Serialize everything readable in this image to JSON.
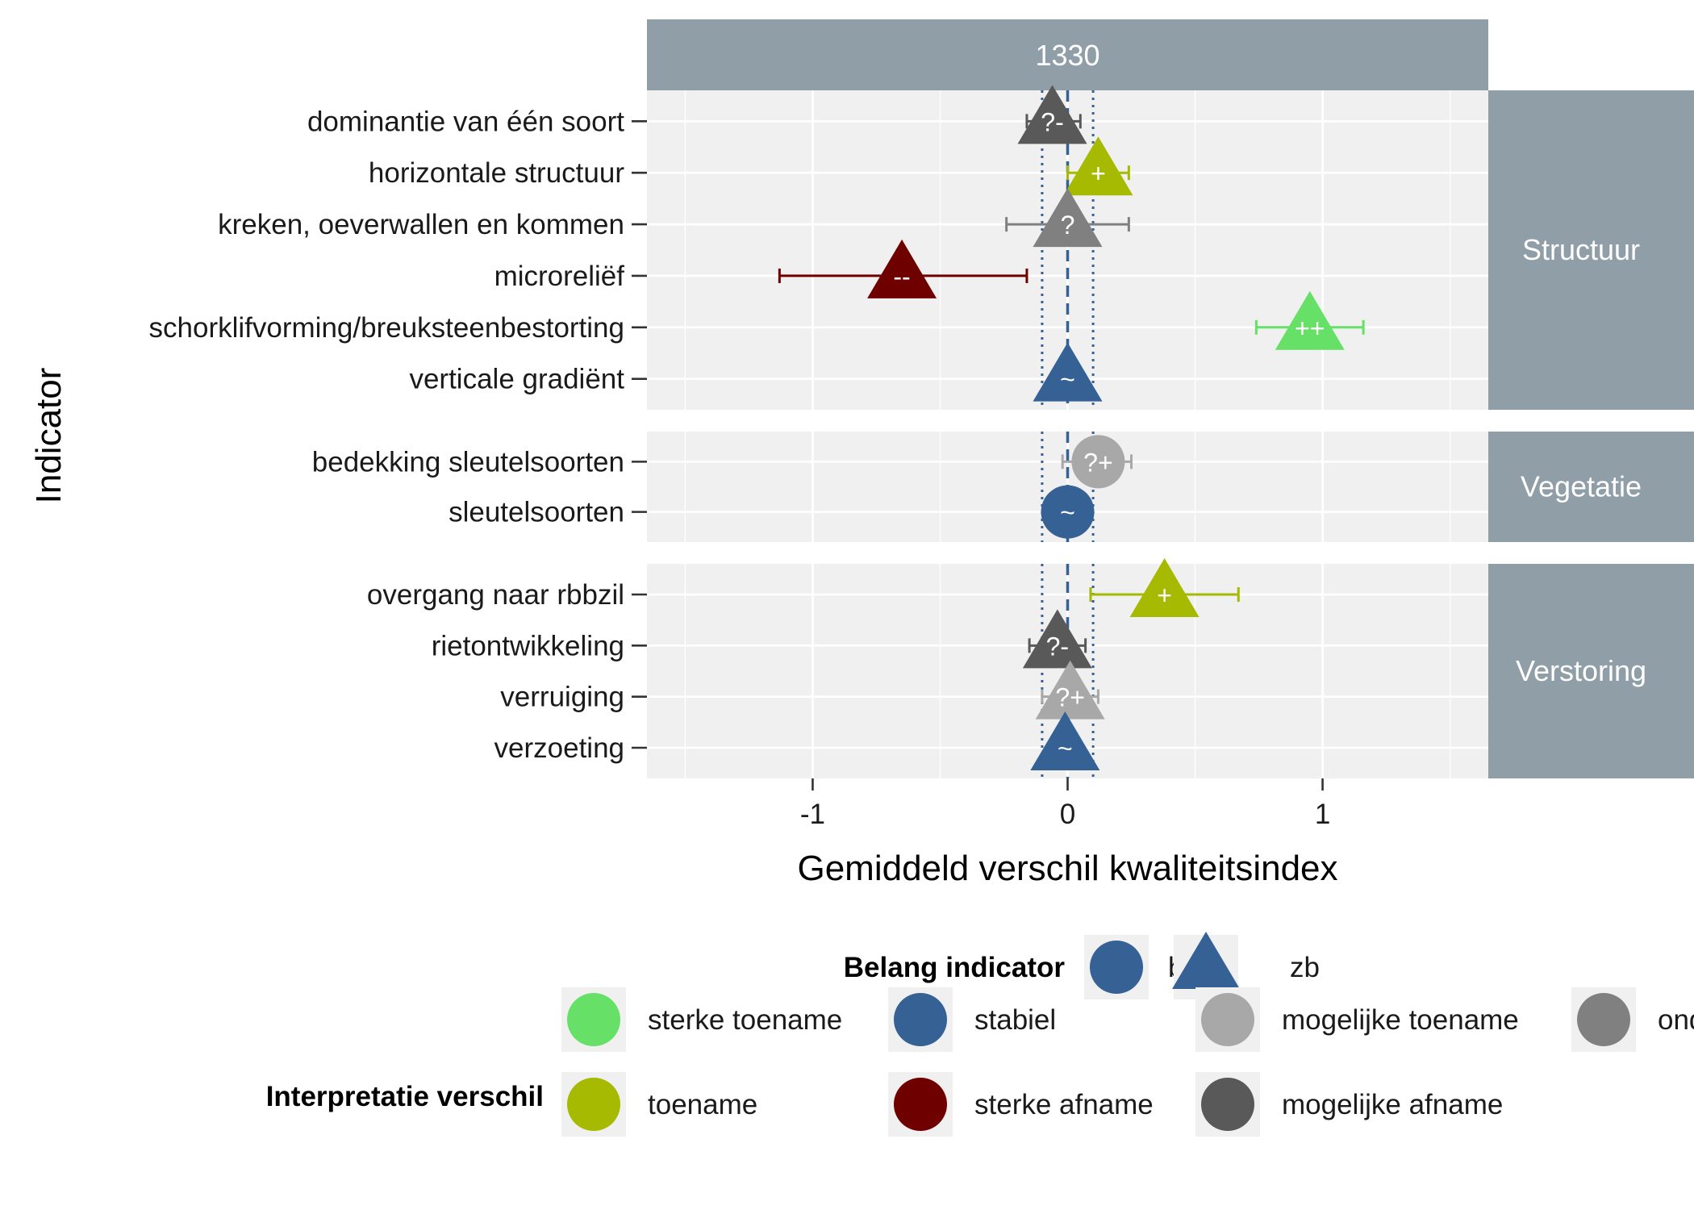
{
  "chart_data": {
    "type": "scatter",
    "top_strip": "1330",
    "xlabel": "Gemiddeld verschil kwaliteitsindex",
    "ylabel": "Indicator",
    "xlim": [
      -1.65,
      1.65
    ],
    "x_ticks": [
      -1,
      0,
      1
    ],
    "x_tick_labels": [
      "-1",
      "0",
      "1"
    ],
    "reference_lines": {
      "dashed": [
        0
      ],
      "dotted": [
        -0.1,
        0.1
      ]
    },
    "panels": [
      {
        "name": "Structuur",
        "rows": [
          {
            "indicator": "dominantie van één soort",
            "estimate": -0.06,
            "lower": -0.16,
            "upper": 0.05,
            "importance": "zb",
            "interpretation": "mogelijke afname",
            "label": "?-"
          },
          {
            "indicator": "horizontale structuur",
            "estimate": 0.12,
            "lower": 0.0,
            "upper": 0.24,
            "importance": "zb",
            "interpretation": "toename",
            "label": "+"
          },
          {
            "indicator": "kreken, oeverwallen en kommen",
            "estimate": 0.0,
            "lower": -0.24,
            "upper": 0.24,
            "importance": "zb",
            "interpretation": "onduidelijk",
            "label": "?"
          },
          {
            "indicator": "microreliëf",
            "estimate": -0.65,
            "lower": -1.13,
            "upper": -0.16,
            "importance": "zb",
            "interpretation": "sterke afname",
            "label": "--"
          },
          {
            "indicator": "schorklifvorming/breuksteenbestorting",
            "estimate": 0.95,
            "lower": 0.74,
            "upper": 1.16,
            "importance": "zb",
            "interpretation": "sterke toename",
            "label": "++"
          },
          {
            "indicator": "verticale gradiënt",
            "estimate": 0.0,
            "lower": 0.0,
            "upper": 0.0,
            "importance": "zb",
            "interpretation": "stabiel",
            "label": "~"
          }
        ]
      },
      {
        "name": "Vegetatie",
        "rows": [
          {
            "indicator": "bedekking sleutelsoorten",
            "estimate": 0.12,
            "lower": -0.02,
            "upper": 0.25,
            "importance": "b",
            "interpretation": "mogelijke toename",
            "label": "?+"
          },
          {
            "indicator": "sleutelsoorten",
            "estimate": 0.0,
            "lower": 0.0,
            "upper": 0.0,
            "importance": "b",
            "interpretation": "stabiel",
            "label": "~"
          }
        ]
      },
      {
        "name": "Verstoring",
        "rows": [
          {
            "indicator": "overgang naar rbbzil",
            "estimate": 0.38,
            "lower": 0.09,
            "upper": 0.67,
            "importance": "zb",
            "interpretation": "toename",
            "label": "+"
          },
          {
            "indicator": "rietontwikkeling",
            "estimate": -0.04,
            "lower": -0.15,
            "upper": 0.07,
            "importance": "zb",
            "interpretation": "mogelijke afname",
            "label": "?-"
          },
          {
            "indicator": "verruiging",
            "estimate": 0.01,
            "lower": -0.1,
            "upper": 0.12,
            "importance": "zb",
            "interpretation": "mogelijke toename",
            "label": "?+"
          },
          {
            "indicator": "verzoeting",
            "estimate": -0.01,
            "lower": -0.01,
            "upper": -0.01,
            "importance": "zb",
            "interpretation": "stabiel",
            "label": "~"
          }
        ]
      }
    ],
    "legend": {
      "placement": "bottom",
      "shape": {
        "title": "Belang indicator",
        "entries": [
          {
            "label": "b",
            "shape": "circle"
          },
          {
            "label": "zb",
            "shape": "triangle"
          }
        ]
      },
      "color": {
        "title": "Interpretatie verschil",
        "entries": [
          {
            "label": "sterke toename",
            "color": "#66e066"
          },
          {
            "label": "toename",
            "color": "#a5ba00"
          },
          {
            "label": "stabiel",
            "color": "#356195"
          },
          {
            "label": "sterke afname",
            "color": "#6e0000"
          },
          {
            "label": "mogelijke toename",
            "color": "#a8a8a8"
          },
          {
            "label": "mogelijke afname",
            "color": "#595959"
          },
          {
            "label": "onduidelijk",
            "color": "#808080"
          }
        ]
      }
    },
    "colors": {
      "panel_background": "#f0f0f0",
      "grid": "#ffffff",
      "strip_background": "#909ea8",
      "reference_line": "#356195",
      "legend_key_background": "#f0f0f0"
    }
  }
}
